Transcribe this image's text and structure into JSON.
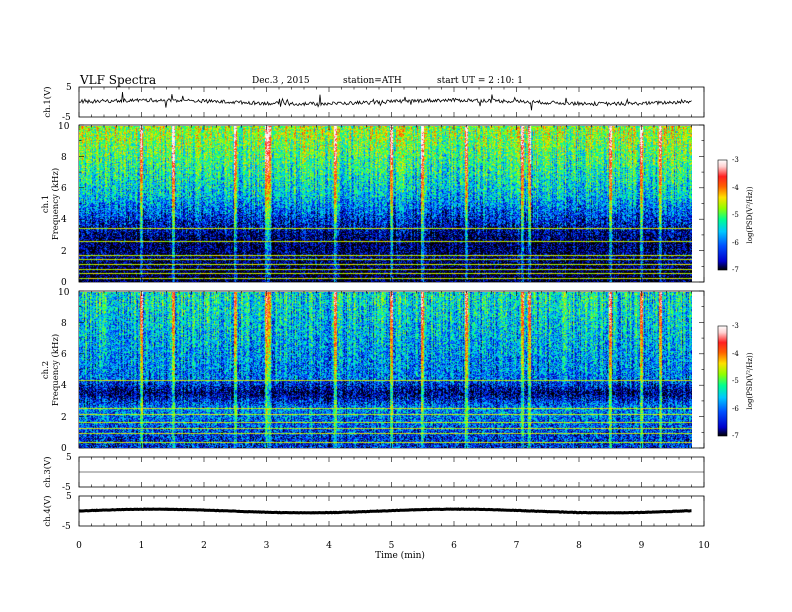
{
  "header": {
    "title": "VLF  Spectra",
    "date": "Dec.3  , 2015",
    "station": "station=ATH",
    "start": "start  UT  =   2  :10: 1"
  },
  "xaxis": {
    "label": "Time  (min)",
    "ticks": [
      "0",
      "1",
      "2",
      "3",
      "4",
      "5",
      "6",
      "7",
      "8",
      "9",
      "10"
    ],
    "range": [
      0,
      10
    ]
  },
  "panels": {
    "ch1_wave": {
      "ylabel": "ch.1(V)",
      "ticks": [
        "5",
        "-5"
      ],
      "ylim": [
        -5,
        5
      ],
      "level": 0
    },
    "ch1_spec": {
      "ylabel_ch": "ch.1",
      "ylabel_freq": "Frequency  (kHz)",
      "ticks": [
        "0",
        "2",
        "4",
        "6",
        "8",
        "10"
      ],
      "ylim": [
        0,
        10
      ]
    },
    "ch2_spec": {
      "ylabel_ch": "ch.2",
      "ylabel_freq": "Frequency  (kHz)",
      "ticks": [
        "0",
        "2",
        "4",
        "6",
        "8",
        "10"
      ],
      "ylim": [
        0,
        10
      ]
    },
    "ch3_wave": {
      "ylabel": "ch.3(V)",
      "ticks": [
        "5",
        "-5"
      ],
      "ylim": [
        -5,
        5
      ]
    },
    "ch4_wave": {
      "ylabel": "ch.4(V)",
      "ticks": [
        "5",
        "-5"
      ],
      "ylim": [
        -5,
        5
      ],
      "level": 0
    }
  },
  "colorbar": {
    "label": "log(PSD(V²/Hz))",
    "ticks": [
      "-3",
      "-4",
      "-5",
      "-6",
      "-7"
    ],
    "range": [
      -7,
      -3
    ],
    "colors": [
      "#000000",
      "#0000cc",
      "#0050ff",
      "#00c8ff",
      "#00ff90",
      "#90ff00",
      "#ffe000",
      "#ff6000",
      "#ff2020",
      "#ffd0d0",
      "#ffffff"
    ]
  },
  "chart_data": {
    "type": "heatmap",
    "title": "VLF  Spectra",
    "xlabel": "Time  (min)",
    "xlim": [
      0,
      9.8
    ],
    "ylim_kHz": [
      0,
      10
    ],
    "z_range_log_psd": [
      -7,
      -3
    ],
    "channels": [
      {
        "name": "ch.1",
        "psd_profile": [
          {
            "f_kHz": 0.5,
            "log_psd": -7.0
          },
          {
            "f_kHz": 1.5,
            "log_psd": -6.8
          },
          {
            "f_kHz": 2.5,
            "log_psd": -6.9
          },
          {
            "f_kHz": 3.5,
            "log_psd": -6.6
          },
          {
            "f_kHz": 4.5,
            "log_psd": -6.2
          },
          {
            "f_kHz": 5.5,
            "log_psd": -5.8
          },
          {
            "f_kHz": 6.5,
            "log_psd": -5.6
          },
          {
            "f_kHz": 7.5,
            "log_psd": -5.4
          },
          {
            "f_kHz": 8.5,
            "log_psd": -5.2
          },
          {
            "f_kHz": 9.5,
            "log_psd": -5.0
          }
        ],
        "tone_lines_kHz": [
          0.2,
          0.5,
          0.8,
          1.1,
          1.4,
          1.7,
          2.6,
          3.4
        ]
      },
      {
        "name": "ch.2",
        "psd_profile": [
          {
            "f_kHz": 0.5,
            "log_psd": -6.4
          },
          {
            "f_kHz": 1.5,
            "log_psd": -6.2
          },
          {
            "f_kHz": 2.5,
            "log_psd": -6.0
          },
          {
            "f_kHz": 3.5,
            "log_psd": -6.8
          },
          {
            "f_kHz": 4.5,
            "log_psd": -6.1
          },
          {
            "f_kHz": 5.5,
            "log_psd": -6.0
          },
          {
            "f_kHz": 6.5,
            "log_psd": -5.9
          },
          {
            "f_kHz": 7.5,
            "log_psd": -5.8
          },
          {
            "f_kHz": 8.5,
            "log_psd": -5.7
          },
          {
            "f_kHz": 9.5,
            "log_psd": -5.6
          }
        ],
        "tone_lines_kHz": [
          0.3,
          0.9,
          1.2,
          1.6,
          2.1,
          2.5,
          4.3
        ]
      }
    ],
    "impulsive_events_min": [
      1.0,
      1.5,
      2.5,
      3.0,
      3.05,
      4.1,
      5.0,
      5.5,
      6.2,
      7.1,
      7.2,
      8.5,
      9.0,
      9.3
    ]
  }
}
